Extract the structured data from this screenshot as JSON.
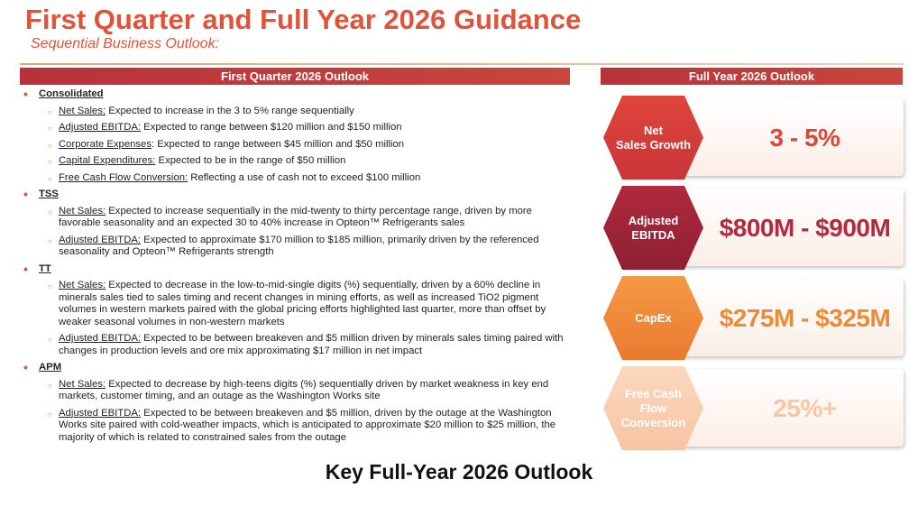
{
  "header": {
    "title": "First Quarter and Full Year 2026 Guidance",
    "subtitle": "Sequential Business Outlook:"
  },
  "first_quarter": {
    "heading": "First Quarter 2026 Outlook",
    "sections": [
      {
        "heading": "Consolidated",
        "items": [
          {
            "label": "Net Sales:",
            "text": " Expected to increase in the 3 to 5% range sequentially"
          },
          {
            "label": "Adjusted EBITDA:",
            "text": " Expected to range between $120 million and $150 million"
          },
          {
            "label": "Corporate Expenses",
            "text": ": Expected to range between $45 million and $50 million"
          },
          {
            "label": "Capital Expenditures:",
            "text": " Expected to be in the range of $50 million"
          },
          {
            "label": "Free Cash Flow Conversion:",
            "text": " Reflecting a use of cash not to exceed $100 million"
          }
        ]
      },
      {
        "heading": "TSS",
        "items": [
          {
            "label": "Net Sales:",
            "text": " Expected to increase sequentially in the mid-twenty to thirty percentage range, driven by more favorable seasonality and an expected 30 to 40% increase in Opteon™ Refrigerants sales"
          },
          {
            "label": "Adjusted EBITDA:",
            "text": " Expected to approximate $170 million to $185 million, primarily driven by the referenced seasonality and Opteon™ Refrigerants strength"
          }
        ]
      },
      {
        "heading": "TT",
        "items": [
          {
            "label": "Net Sales:",
            "text": " Expected to decrease in the low-to-mid-single digits (%) sequentially, driven by a 60% decline in minerals sales tied to sales timing and recent changes in mining efforts, as well as increased TiO2 pigment volumes in western markets paired with the global pricing efforts highlighted last quarter, more than offset by weaker seasonal volumes in non-western markets"
          },
          {
            "label": "Adjusted EBITDA:",
            "text": " Expected to be between breakeven and $5 million driven by minerals sales timing paired with changes in production levels and ore mix approximating $17 million in net impact"
          }
        ]
      },
      {
        "heading": "APM",
        "items": [
          {
            "label": "Net Sales:",
            "text": " Expected to decrease by high-teens digits (%) sequentially driven by market weakness in key end markets, customer timing, and an outage as the Washington Works site"
          },
          {
            "label": "Adjusted EBITDA:",
            "text": " Expected to be between breakeven and $5 million, driven by the outage at the Washington Works site paired with cold-weather impacts, which is anticipated to approximate $20 million to $25 million, the majority of which is related to constrained sales from the outage"
          }
        ]
      }
    ]
  },
  "full_year": {
    "heading": "Full Year 2026 Outlook",
    "metrics": [
      {
        "label": "Net\nSales Growth",
        "value": "3 - 5%"
      },
      {
        "label": "Adjusted\nEBITDA",
        "value": "$800M - $900M"
      },
      {
        "label": "CapEx",
        "value": "$275M - $325M"
      },
      {
        "label": "Free Cash\nFlow\nConversion",
        "value": "25%+"
      }
    ]
  },
  "footer": {
    "caption": "Key Full-Year 2026 Outlook"
  }
}
